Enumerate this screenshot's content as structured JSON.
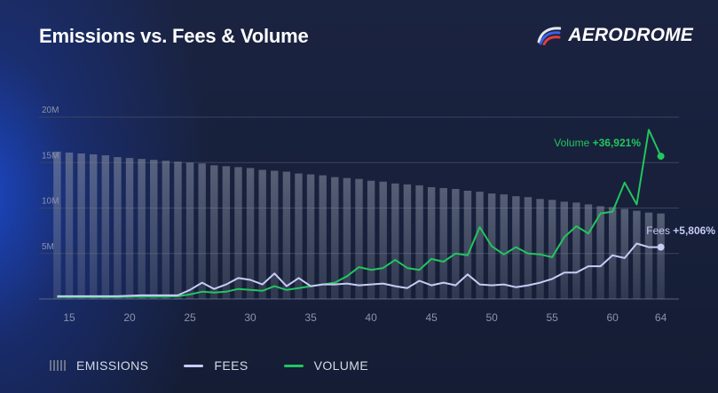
{
  "title": "Emissions vs. Fees & Volume",
  "brand": {
    "name": "AERODROME",
    "icon": "aerodrome-logo-icon"
  },
  "colors": {
    "background": "#17203a",
    "emissions": "#7c8498",
    "fees": "#c7cbf5",
    "volume": "#22c55e",
    "grid": "#3a4460",
    "axis_text": "#8c93a8"
  },
  "legend": [
    {
      "label": "EMISSIONS",
      "series": "emissions"
    },
    {
      "label": "FEES",
      "series": "fees"
    },
    {
      "label": "VOLUME",
      "series": "volume"
    }
  ],
  "annotations": {
    "volume": {
      "label": "Volume",
      "value": "+36,921%"
    },
    "fees": {
      "label": "Fees",
      "value": "+5,806%"
    }
  },
  "chart_data": {
    "type": "bar",
    "title": "Emissions vs. Fees & Volume",
    "x": [
      14,
      15,
      16,
      17,
      18,
      19,
      20,
      21,
      22,
      23,
      24,
      25,
      26,
      27,
      28,
      29,
      30,
      31,
      32,
      33,
      34,
      35,
      36,
      37,
      38,
      39,
      40,
      41,
      42,
      43,
      44,
      45,
      46,
      47,
      48,
      49,
      50,
      51,
      52,
      53,
      54,
      55,
      56,
      57,
      58,
      59,
      60,
      61,
      62,
      63,
      64
    ],
    "xlim": [
      12.5,
      65.5
    ],
    "x_ticks": [
      15,
      20,
      25,
      30,
      35,
      40,
      45,
      50,
      55,
      60,
      64
    ],
    "ylim": [
      0,
      20
    ],
    "y_ticks": [
      5,
      10,
      15,
      20
    ],
    "y_tick_labels": [
      "5M",
      "10M",
      "15M",
      "20M"
    ],
    "grid": true,
    "legend_position": "bottom-left",
    "series": [
      {
        "name": "EMISSIONS",
        "type": "bar",
        "values": [
          16.2,
          16.1,
          16.0,
          15.9,
          15.8,
          15.6,
          15.5,
          15.4,
          15.3,
          15.2,
          15.1,
          15.0,
          14.9,
          14.7,
          14.6,
          14.5,
          14.4,
          14.2,
          14.1,
          14.0,
          13.8,
          13.7,
          13.6,
          13.4,
          13.3,
          13.2,
          13.0,
          12.9,
          12.7,
          12.6,
          12.5,
          12.3,
          12.2,
          12.1,
          11.9,
          11.8,
          11.6,
          11.5,
          11.3,
          11.2,
          11.0,
          10.9,
          10.7,
          10.6,
          10.4,
          10.2,
          10.1,
          9.9,
          9.7,
          9.5,
          9.4
        ]
      },
      {
        "name": "FEES",
        "type": "line",
        "values": [
          0.3,
          0.3,
          0.3,
          0.3,
          0.3,
          0.3,
          0.35,
          0.4,
          0.4,
          0.4,
          0.4,
          1.0,
          1.8,
          1.1,
          1.6,
          2.3,
          2.1,
          1.6,
          2.8,
          1.4,
          2.3,
          1.4,
          1.6,
          1.6,
          1.7,
          1.5,
          1.6,
          1.7,
          1.4,
          1.2,
          2.0,
          1.5,
          1.8,
          1.5,
          2.7,
          1.6,
          1.5,
          1.6,
          1.3,
          1.5,
          1.8,
          2.2,
          2.9,
          2.9,
          3.6,
          3.6,
          4.8,
          4.5,
          6.1,
          5.7,
          5.7
        ]
      },
      {
        "name": "VOLUME",
        "type": "line",
        "values": [
          0.2,
          0.2,
          0.2,
          0.2,
          0.2,
          0.2,
          0.25,
          0.25,
          0.25,
          0.25,
          0.3,
          0.5,
          0.8,
          0.7,
          0.8,
          1.1,
          1.0,
          0.9,
          1.4,
          1.0,
          1.2,
          1.4,
          1.6,
          1.8,
          2.5,
          3.5,
          3.2,
          3.4,
          4.3,
          3.4,
          3.2,
          4.4,
          4.1,
          5.0,
          4.8,
          7.9,
          5.8,
          4.9,
          5.7,
          5.0,
          4.9,
          4.6,
          6.8,
          8.0,
          7.2,
          9.4,
          9.6,
          12.8,
          10.4,
          18.6,
          15.7
        ]
      }
    ]
  }
}
